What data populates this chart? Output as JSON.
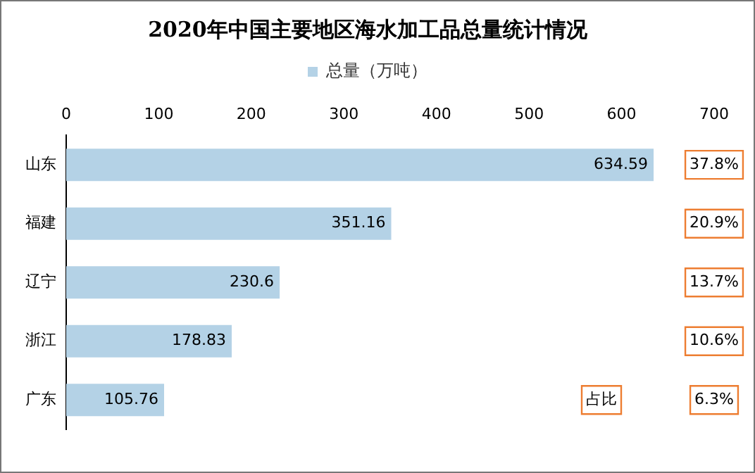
{
  "chart_data": {
    "type": "bar",
    "orientation": "horizontal",
    "title": "2020年中国主要地区海水加工品总量统计情况",
    "categories": [
      "山东",
      "福建",
      "辽宁",
      "浙江",
      "广东"
    ],
    "series": [
      {
        "name": "总量（万吨）",
        "color": "#b4d2e6",
        "values": [
          634.59,
          351.16,
          230.6,
          178.83,
          105.76
        ]
      }
    ],
    "xlim": [
      0,
      700
    ],
    "xticks": [
      0,
      100,
      200,
      300,
      400,
      500,
      600,
      700
    ],
    "data_labels": true,
    "grid": false,
    "legend": "top",
    "annotations": [
      "37.8%",
      "20.9%",
      "13.7%",
      "10.6%",
      "6.3%",
      "占比"
    ]
  }
}
